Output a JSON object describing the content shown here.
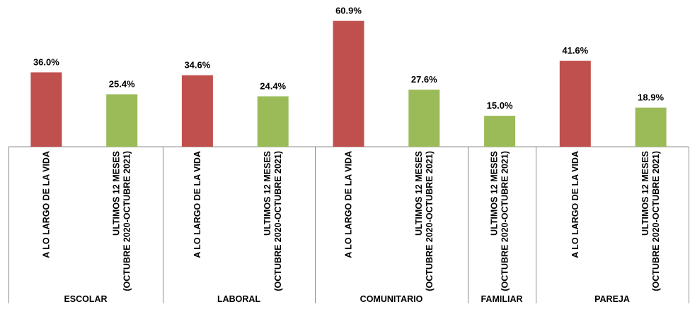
{
  "chart_data": {
    "type": "bar",
    "colors": {
      "lifetime": "#c0504d",
      "last12": "#9bbb59"
    },
    "groups": [
      {
        "name": "ESCOLAR",
        "bars": [
          {
            "label": [
              "A LO LARGO DE LA VIDA"
            ],
            "value": 36.0,
            "display": "36.0%",
            "series": "lifetime"
          },
          {
            "label": [
              "ULTIMOS 12 MESES",
              "(OCTUBRE 2020-OCTUBRE 2021)"
            ],
            "value": 25.4,
            "display": "25.4%",
            "series": "last12"
          }
        ]
      },
      {
        "name": "LABORAL",
        "bars": [
          {
            "label": [
              "A LO LARGO DE LA VIDA"
            ],
            "value": 34.6,
            "display": "34.6%",
            "series": "lifetime"
          },
          {
            "label": [
              "ULTIMOS 12 MESES",
              "(OCTUBRE 2020-OCTUBRE 2021)"
            ],
            "value": 24.4,
            "display": "24.4%",
            "series": "last12"
          }
        ]
      },
      {
        "name": "COMUNITARIO",
        "bars": [
          {
            "label": [
              "A LO LARGO DE LA VIDA"
            ],
            "value": 60.9,
            "display": "60.9%",
            "series": "lifetime"
          },
          {
            "label": [
              "ULTIMOS 12 MESES",
              "(OCTUBRE 2020-OCTUBRE 2021)"
            ],
            "value": 27.6,
            "display": "27.6%",
            "series": "last12"
          }
        ]
      },
      {
        "name": "FAMILIAR",
        "bars": [
          {
            "label": [
              "ULTIMOS 12 MESES",
              "(OCTUBRE 2020-OCTUBRE 2021)"
            ],
            "value": 15.0,
            "display": "15.0%",
            "series": "last12"
          }
        ]
      },
      {
        "name": "PAREJA",
        "bars": [
          {
            "label": [
              "A LO LARGO DE LA VIDA"
            ],
            "value": 41.6,
            "display": "41.6%",
            "series": "lifetime"
          },
          {
            "label": [
              "ULTIMOS 12 MESES",
              "(OCTUBRE 2020-OCTUBRE 2021)"
            ],
            "value": 18.9,
            "display": "18.9%",
            "series": "last12"
          }
        ]
      }
    ],
    "title": "",
    "xlabel": "",
    "ylabel": "",
    "ylim": [
      0,
      62
    ],
    "grid": false,
    "legend": "none"
  }
}
